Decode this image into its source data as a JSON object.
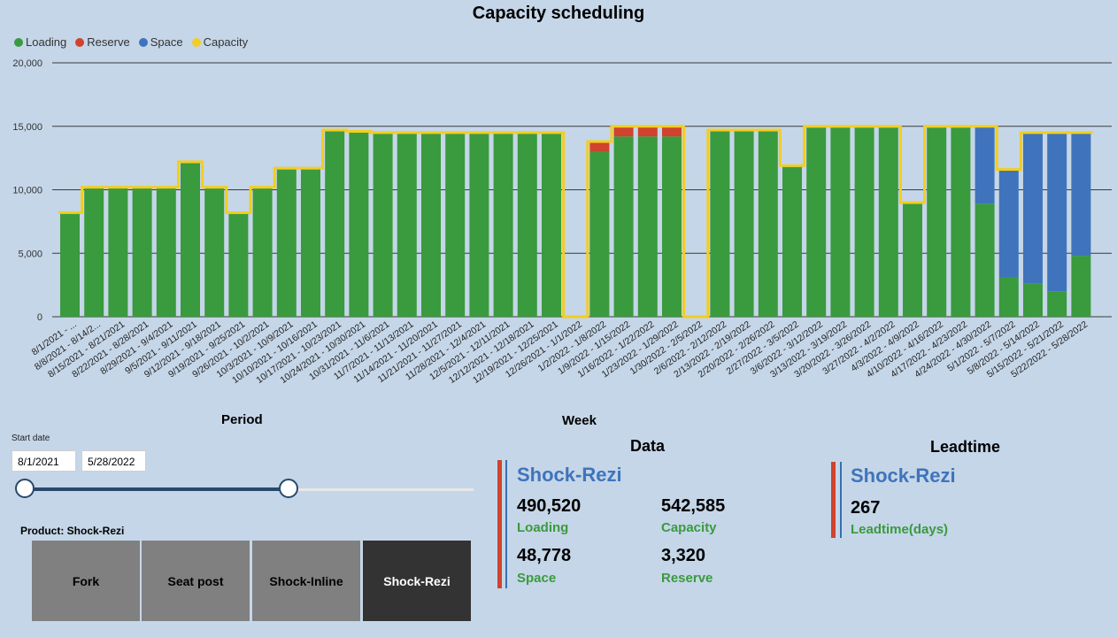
{
  "title": "Capacity scheduling",
  "legend": [
    {
      "name": "Loading",
      "color": "#3a9a3e"
    },
    {
      "name": "Reserve",
      "color": "#d0432e"
    },
    {
      "name": "Space",
      "color": "#3f74bc"
    },
    {
      "name": "Capacity",
      "color": "#f3cd20"
    }
  ],
  "chart_data": {
    "type": "bar",
    "stacked": true,
    "title": "Capacity scheduling",
    "xlabel": "",
    "ylabel": "",
    "ylim": [
      0,
      20000
    ],
    "yticks": [
      0,
      5000,
      10000,
      15000,
      20000
    ],
    "ytick_labels": [
      "0",
      "5,000",
      "10,000",
      "15,000",
      "20,000"
    ],
    "grid": true,
    "legend_position": "top-left",
    "categories": [
      "8/1/2021 - ...",
      "8/8/2021 - 8/14/2...",
      "8/15/2021 - 8/21/2021",
      "8/22/2021 - 8/28/2021",
      "8/29/2021 - 9/4/2021",
      "9/5/2021 - 9/11/2021",
      "9/12/2021 - 9/18/2021",
      "9/19/2021 - 9/25/2021",
      "9/26/2021 - 10/2/2021",
      "10/3/2021 - 10/9/2021",
      "10/10/2021 - 10/16/2021",
      "10/17/2021 - 10/23/2021",
      "10/24/2021 - 10/30/2021",
      "10/31/2021 - 11/6/2021",
      "11/7/2021 - 11/13/2021",
      "11/14/2021 - 11/20/2021",
      "11/21/2021 - 11/27/2021",
      "11/28/2021 - 12/4/2021",
      "12/5/2021 - 12/11/2021",
      "12/12/2021 - 12/18/2021",
      "12/19/2021 - 12/25/2021",
      "12/26/2021 - 1/1/2022",
      "1/2/2022 - 1/8/2022",
      "1/9/2022 - 1/15/2022",
      "1/16/2022 - 1/22/2022",
      "1/23/2022 - 1/29/2022",
      "1/30/2022 - 2/5/2022",
      "2/6/2022 - 2/12/2022",
      "2/13/2022 - 2/19/2022",
      "2/20/2022 - 2/26/2022",
      "2/27/2022 - 3/5/2022",
      "3/6/2022 - 3/12/2022",
      "3/13/2022 - 3/19/2022",
      "3/20/2022 - 3/26/2022",
      "3/27/2022 - 4/2/2022",
      "4/3/2022 - 4/9/2022",
      "4/10/2022 - 4/16/2022",
      "4/17/2022 - 4/23/2022",
      "4/24/2022 - 4/30/2022",
      "5/1/2022 - 5/7/2022",
      "5/8/2022 - 5/14/2022",
      "5/15/2022 - 5/21/2022",
      "5/22/2022 - 5/28/2022"
    ],
    "series": [
      {
        "name": "Loading",
        "color": "#3a9a3e",
        "values": [
          8200,
          10200,
          10200,
          10200,
          10100,
          12100,
          10100,
          8100,
          10100,
          11700,
          11700,
          14600,
          14600,
          14500,
          14500,
          14500,
          14500,
          14500,
          14500,
          14500,
          14500,
          0,
          13000,
          14200,
          14200,
          14200,
          0,
          14600,
          14600,
          14600,
          11800,
          14900,
          14900,
          14900,
          14900,
          8900,
          14900,
          14900,
          8900,
          3100,
          2600,
          2000,
          4800
        ]
      },
      {
        "name": "Reserve",
        "color": "#d0432e",
        "values": [
          0,
          0,
          0,
          0,
          0,
          0,
          0,
          0,
          0,
          0,
          0,
          0,
          0,
          0,
          0,
          0,
          0,
          0,
          0,
          0,
          0,
          0,
          800,
          800,
          800,
          800,
          0,
          0,
          0,
          0,
          0,
          0,
          0,
          0,
          0,
          0,
          0,
          0,
          0,
          0,
          0,
          0,
          0
        ]
      },
      {
        "name": "Space",
        "color": "#3f74bc",
        "values": [
          0,
          0,
          0,
          0,
          0,
          0,
          0,
          0,
          0,
          0,
          0,
          0,
          0,
          0,
          0,
          0,
          0,
          0,
          0,
          0,
          0,
          0,
          0,
          0,
          0,
          0,
          0,
          0,
          0,
          0,
          0,
          0,
          0,
          0,
          0,
          0,
          0,
          0,
          6100,
          8500,
          11900,
          12500,
          9700
        ]
      },
      {
        "name": "Capacity",
        "type": "step-line",
        "color": "#f3cd20",
        "values": [
          8200,
          10200,
          10200,
          10200,
          10200,
          12200,
          10200,
          8200,
          10200,
          11700,
          11700,
          14700,
          14600,
          14500,
          14500,
          14500,
          14500,
          14500,
          14500,
          14500,
          14500,
          0,
          13800,
          15000,
          15000,
          15000,
          0,
          14700,
          14700,
          14700,
          11900,
          15000,
          15000,
          15000,
          15000,
          9000,
          15000,
          15000,
          15000,
          11600,
          14500,
          14500,
          14500
        ]
      }
    ]
  },
  "filters": {
    "period_title": "Period",
    "start_date_label": "Start date",
    "start_date": "8/1/2021",
    "end_date": "5/28/2022",
    "slider_start_fraction": 0.0,
    "slider_end_fraction": 0.587
  },
  "week_title": "Week",
  "product_selector": {
    "label": "Product: Shock-Rezi",
    "options": [
      "Fork",
      "Seat post",
      "Shock-Inline",
      "Shock-Rezi"
    ],
    "selected": "Shock-Rezi"
  },
  "data_card": {
    "title": "Data",
    "product": "Shock-Rezi",
    "loading_value": "490,520",
    "loading_label": "Loading",
    "capacity_value": "542,585",
    "capacity_label": "Capacity",
    "space_value": "48,778",
    "space_label": "Space",
    "reserve_value": "3,320",
    "reserve_label": "Reserve"
  },
  "leadtime_card": {
    "title": "Leadtime",
    "product": "Shock-Rezi",
    "value": "267",
    "label": "Leadtime(days)"
  }
}
